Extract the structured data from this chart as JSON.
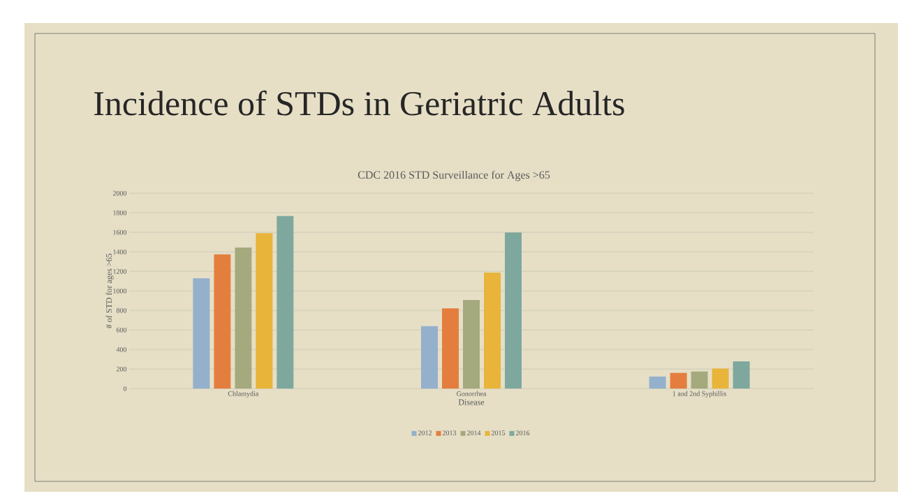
{
  "chart_data": {
    "type": "bar",
    "title": "Incidence of STDs in Geriatric Adults",
    "subtitle": "CDC 2016 STD Surveillance for Ages >65",
    "xlabel": "Disease",
    "ylabel": "# of STD for ages >65",
    "categories": [
      "Chlamydia",
      "Gonorrhea",
      "1 and 2nd Syphillis"
    ],
    "series": [
      {
        "name": "2012",
        "color": "#94b0cb",
        "values": [
          1130,
          640,
          123
        ]
      },
      {
        "name": "2013",
        "color": "#e37e3f",
        "values": [
          1375,
          821,
          161
        ]
      },
      {
        "name": "2014",
        "color": "#a4a97e",
        "values": [
          1444,
          908,
          175
        ]
      },
      {
        "name": "2015",
        "color": "#e8b53a",
        "values": [
          1592,
          1187,
          205
        ]
      },
      {
        "name": "2016",
        "color": "#7ea89d",
        "values": [
          1768,
          1598,
          279
        ]
      }
    ],
    "ylim": [
      0,
      2000
    ],
    "yticks": [
      0,
      200,
      400,
      600,
      800,
      1000,
      1200,
      1400,
      1600,
      1800,
      2000
    ],
    "grid": "y",
    "legend": "bottom"
  }
}
